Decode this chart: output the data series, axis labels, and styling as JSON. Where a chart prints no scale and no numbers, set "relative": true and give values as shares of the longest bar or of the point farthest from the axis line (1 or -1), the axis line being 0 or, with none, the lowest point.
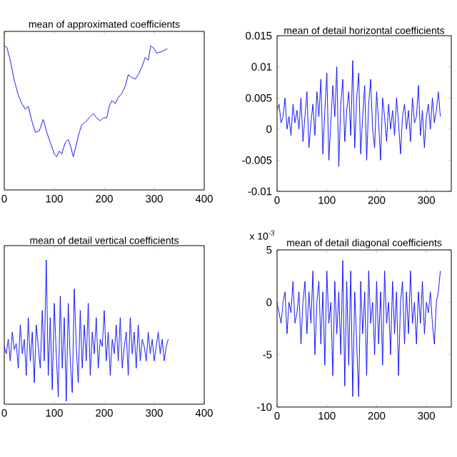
{
  "chart_data": [
    {
      "type": "line",
      "title": "mean of approximated coefficients",
      "relative": true,
      "tick_labels": "x",
      "xlim": [
        0,
        400
      ],
      "xticks": [
        0,
        100,
        200,
        300,
        400
      ],
      "x": [
        0,
        5,
        12,
        20,
        28,
        35,
        42,
        48,
        55,
        62,
        70,
        78,
        85,
        92,
        100,
        105,
        110,
        115,
        122,
        128,
        133,
        138,
        143,
        150,
        155,
        162,
        170,
        178,
        185,
        192,
        198,
        205,
        210,
        215,
        222,
        228,
        235,
        242,
        248,
        255,
        262,
        268,
        275,
        282,
        288,
        293,
        300,
        305,
        315,
        326
      ],
      "series": [
        {
          "color": "#0000ff",
          "values": [
            1.0,
            0.99,
            0.9,
            0.76,
            0.66,
            0.6,
            0.56,
            0.58,
            0.48,
            0.4,
            0.41,
            0.49,
            0.4,
            0.33,
            0.25,
            0.23,
            0.27,
            0.25,
            0.33,
            0.35,
            0.3,
            0.23,
            0.3,
            0.4,
            0.45,
            0.47,
            0.5,
            0.53,
            0.5,
            0.48,
            0.5,
            0.5,
            0.58,
            0.62,
            0.6,
            0.64,
            0.67,
            0.72,
            0.8,
            0.78,
            0.77,
            0.8,
            0.85,
            0.92,
            0.9,
            1.0,
            0.98,
            0.95,
            0.96,
            0.98
          ]
        }
      ]
    },
    {
      "type": "line",
      "title": "mean of detail horizontal coefficients",
      "xlim": [
        0,
        350
      ],
      "xticks": [
        0,
        100,
        200,
        300
      ],
      "ylim": [
        -0.01,
        0.015
      ],
      "yticks": [
        -0.01,
        -0.005,
        0,
        0.005,
        0.01,
        0.015
      ],
      "x": [
        0,
        4,
        8,
        12,
        16,
        20,
        24,
        28,
        32,
        36,
        40,
        44,
        48,
        52,
        56,
        60,
        64,
        68,
        72,
        76,
        80,
        84,
        88,
        92,
        96,
        100,
        104,
        108,
        112,
        116,
        120,
        124,
        128,
        132,
        136,
        140,
        144,
        148,
        152,
        156,
        160,
        164,
        168,
        172,
        176,
        180,
        184,
        188,
        192,
        196,
        200,
        204,
        208,
        212,
        216,
        220,
        224,
        228,
        232,
        236,
        240,
        244,
        248,
        252,
        256,
        260,
        264,
        268,
        272,
        276,
        280,
        284,
        288,
        292,
        296,
        300,
        304,
        308,
        312,
        316,
        320,
        324,
        328
      ],
      "series": [
        {
          "color": "#0000ff",
          "values": [
            0.003,
            0.004,
            0.001,
            0.002,
            0.005,
            0,
            0.002,
            -0.001,
            0.004,
            0.001,
            0.003,
            0,
            0.005,
            -0.002,
            0.002,
            0.006,
            -0.003,
            0.001,
            0.004,
            -0.001,
            0.006,
            0.002,
            0.008,
            -0.004,
            0.003,
            0.009,
            -0.005,
            0.001,
            0.007,
            0.002,
            0.01,
            -0.006,
            0.004,
            0.008,
            -0.002,
            0.003,
            0.006,
            -0.001,
            0.011,
            -0.003,
            0.005,
            0.009,
            -0.004,
            0.002,
            0.007,
            -0.005,
            0.004,
            0.008,
            0,
            -0.003,
            0.006,
            0.001,
            -0.005,
            0.005,
            0.002,
            -0.002,
            0.004,
            0,
            0.003,
            -0.001,
            0.005,
            0.001,
            -0.004,
            0.002,
            0.004,
            0,
            0.003,
            -0.002,
            0.005,
            0.001,
            0.002,
            0.007,
            -0.001,
            0.003,
            -0.003,
            0.002,
            0.004,
            0,
            0.005,
            0.001,
            0.003,
            0.006,
            0.002
          ]
        }
      ]
    },
    {
      "type": "line",
      "title": "mean of  detail vertical coefficients",
      "relative": true,
      "tick_labels": "x",
      "xlim": [
        0,
        400
      ],
      "xticks": [
        0,
        100,
        200,
        300,
        400
      ],
      "x": [
        0,
        4,
        8,
        12,
        16,
        20,
        24,
        28,
        32,
        36,
        40,
        44,
        48,
        52,
        56,
        60,
        64,
        68,
        72,
        76,
        80,
        84,
        88,
        92,
        96,
        100,
        104,
        108,
        112,
        116,
        120,
        124,
        128,
        132,
        136,
        140,
        144,
        148,
        152,
        156,
        160,
        164,
        168,
        172,
        176,
        180,
        184,
        188,
        192,
        196,
        200,
        204,
        208,
        212,
        216,
        220,
        224,
        228,
        232,
        236,
        240,
        244,
        248,
        252,
        256,
        260,
        264,
        268,
        272,
        276,
        280,
        284,
        288,
        292,
        296,
        300,
        304,
        308,
        312,
        316,
        320,
        324,
        328
      ],
      "series": [
        {
          "color": "#0000ff",
          "values": [
            0.4,
            0.35,
            0.45,
            0.3,
            0.5,
            0.38,
            0.42,
            0.25,
            0.55,
            0.35,
            0.45,
            0.2,
            0.6,
            0.3,
            0.5,
            0.15,
            0.55,
            0.4,
            0.25,
            0.65,
            0.3,
            1.0,
            0.2,
            0.6,
            0.1,
            0.7,
            0.35,
            0.05,
            0.75,
            0.25,
            0.6,
            0.02,
            0.7,
            0.3,
            0.08,
            0.8,
            0.4,
            0.15,
            0.65,
            0.25,
            0.55,
            0.3,
            0.7,
            0.2,
            0.5,
            0.35,
            0.6,
            0.25,
            0.45,
            0.4,
            0.65,
            0.3,
            0.5,
            0.2,
            0.45,
            0.35,
            0.55,
            0.3,
            0.6,
            0.25,
            0.4,
            0.5,
            0.2,
            0.6,
            0.35,
            0.5,
            0.25,
            0.55,
            0.3,
            0.45,
            0.4,
            0.3,
            0.5,
            0.35,
            0.45,
            0.3,
            0.4,
            0.5,
            0.35,
            0.45,
            0.3,
            0.4,
            0.45
          ]
        }
      ]
    },
    {
      "type": "line",
      "title": "mean of  detail diagonal coefficients",
      "annotations": [
        "x 10$^{-3}$"
      ],
      "xlim": [
        0,
        350
      ],
      "xticks": [
        0,
        100,
        200,
        300
      ],
      "ylim": [
        -10,
        5
      ],
      "yticks": [
        -10,
        -5,
        0,
        5
      ],
      "x": [
        0,
        4,
        8,
        12,
        16,
        20,
        24,
        28,
        32,
        36,
        40,
        44,
        48,
        52,
        56,
        60,
        64,
        68,
        72,
        76,
        80,
        84,
        88,
        92,
        96,
        100,
        104,
        108,
        112,
        116,
        120,
        124,
        128,
        132,
        136,
        140,
        144,
        148,
        152,
        156,
        160,
        164,
        168,
        172,
        176,
        180,
        184,
        188,
        192,
        196,
        200,
        204,
        208,
        212,
        216,
        220,
        224,
        228,
        232,
        236,
        240,
        244,
        248,
        252,
        256,
        260,
        264,
        268,
        272,
        276,
        280,
        284,
        288,
        292,
        296,
        300,
        304,
        308,
        312,
        316,
        320,
        324,
        328
      ],
      "series": [
        {
          "color": "#0000ff",
          "values": [
            0,
            -1,
            -2,
            0,
            1,
            -3,
            0,
            -1,
            2,
            -2,
            -1,
            1,
            -4,
            0,
            2,
            -3,
            1,
            -2,
            3,
            -5,
            0,
            2,
            -4,
            1,
            -6,
            3,
            -2,
            0,
            -7,
            2,
            -3,
            1,
            -5,
            4,
            -8,
            2,
            -6,
            3,
            -9,
            1,
            -4,
            -9,
            2,
            -3,
            1,
            -7,
            3,
            -2,
            0,
            -5,
            2,
            -4,
            1,
            -6,
            3,
            -2,
            0,
            -5,
            2,
            -3,
            1,
            -7,
            0,
            2,
            -4,
            1,
            -3,
            3,
            -2,
            0,
            -4,
            1,
            -2,
            2,
            -3,
            0,
            -1,
            1,
            -2,
            -4,
            0,
            1,
            3
          ]
        }
      ]
    }
  ]
}
